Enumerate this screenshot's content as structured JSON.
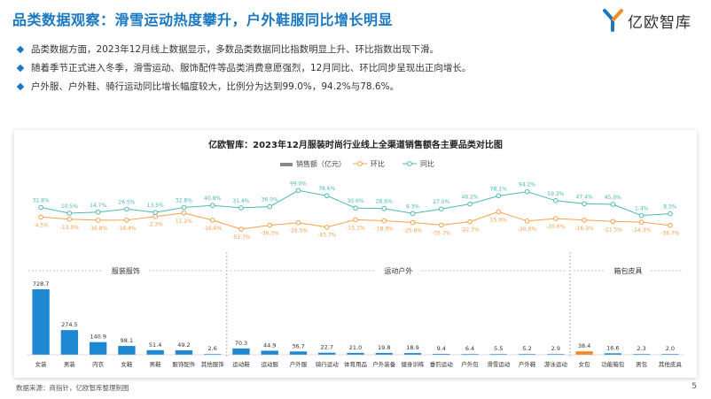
{
  "page": {
    "title": "品类数据观察：滑雪运动热度攀升，户外鞋服同比增长明显",
    "logo_text": "亿欧智库",
    "bullets": [
      "品类数据方面，2023年12月线上数据显示，多数品类数据同比指数明显上升、环比指数出现下滑。",
      "随着季节正式进入冬季，滑雪运动、服饰配件等品类消费意愿强烈，12月同比、环比同步呈现出正向增长。",
      "户外服、户外鞋、骑行运动同比增长幅度较大，比例分为达到99.0%，94.2%与78.6%。"
    ],
    "source": "数据来源：商指针，亿欧智库整理制图",
    "page_number": "5",
    "colors": {
      "accent": "#1a78c2",
      "bar": "#1f88d3",
      "bar_highlight": "#f28c28",
      "mom": "#f5a04a",
      "yoy": "#4bb8b3"
    }
  },
  "chart_data": {
    "type": "bar",
    "title": "亿欧智库：2023年12月服装时尚行业线上全渠道销售额各主要品类对比图",
    "legend": [
      "销售额（亿元）",
      "环比",
      "同比"
    ],
    "legend_position": "top",
    "categories": [
      "女装",
      "男装",
      "内衣",
      "女鞋",
      "男鞋",
      "服饰配件",
      "其他服饰",
      "运动鞋",
      "运动服",
      "户外服",
      "骑行运动",
      "体育用品",
      "户外装备",
      "健身训练",
      "垂钓运动",
      "户外包",
      "滑雪运动",
      "户外鞋",
      "游泳运动",
      "女包",
      "功能箱包",
      "男包",
      "其他皮具"
    ],
    "groups": [
      {
        "label": "服装服饰",
        "start": 0,
        "end": 6
      },
      {
        "label": "运动户外",
        "start": 7,
        "end": 18
      },
      {
        "label": "箱包皮具",
        "start": 19,
        "end": 22
      }
    ],
    "series": [
      {
        "name": "销售额（亿元）",
        "type": "bar",
        "values": [
          728.7,
          274.5,
          140.9,
          98.1,
          51.4,
          49.2,
          2.6,
          70.3,
          44.9,
          36.7,
          22.7,
          21.0,
          19.8,
          18.9,
          9.4,
          6.4,
          5.5,
          5.2,
          2.9,
          38.4,
          16.6,
          2.3,
          2.0
        ],
        "labels": [
          "728.7",
          "274.5",
          "140.9",
          "98.1",
          "51.4",
          "49.2",
          "2.6",
          "70.3",
          "44.9",
          "36.7",
          "22.7",
          "21.0",
          "19.8",
          "18.9",
          "9.4",
          "6.4",
          "5.5",
          "5.2",
          "2.9",
          "38.4",
          "16.6",
          "2.3",
          "2.0"
        ]
      },
      {
        "name": "环比",
        "type": "line",
        "values": [
          -4.5,
          -13.0,
          -16.8,
          -16.4,
          -2.3,
          11.2,
          -16.6,
          -51.7,
          -36.3,
          -26.5,
          -43.7,
          -15.1,
          -18.9,
          -25.8,
          -35.7,
          -22.7,
          15.9,
          -20.0,
          -10.6,
          -16.3,
          -21.5,
          -24.3,
          -36.7
        ],
        "labels": [
          "-4.5%",
          "-13.0%",
          "-16.8%",
          "-16.4%",
          "-2.3%",
          "11.2%",
          "-16.6%",
          "-51.7%",
          "-36.3%",
          "-26.5%",
          "-43.7%",
          "-15.1%",
          "-18.9%",
          "-25.8%",
          "-35.7%",
          "-22.7%",
          "15.9%",
          "-20.0%",
          "-10.6%",
          "-16.3%",
          "-21.5%",
          "-24.3%",
          "-36.7%"
        ]
      },
      {
        "name": "同比",
        "type": "line",
        "values": [
          32.8,
          10.5,
          14.7,
          26.5,
          13.5,
          32.8,
          40.8,
          31.4,
          36.0,
          99.0,
          78.6,
          30.6,
          28.6,
          9.3,
          27.0,
          46.2,
          78.1,
          94.2,
          59.3,
          47.4,
          45.0,
          1.4,
          8.5
        ],
        "labels": [
          "32.8%",
          "10.5%",
          "14.7%",
          "26.5%",
          "13.5%",
          "32.8%",
          "40.8%",
          "31.4%",
          "36.0%",
          "99.0%",
          "78.6%",
          "30.6%",
          "28.6%",
          "9.3%",
          "27.0%",
          "46.2%",
          "78.1%",
          "94.2%",
          "59.3%",
          "47.4%",
          "45.0%",
          "1.4%",
          "8.5%"
        ]
      }
    ],
    "highlight_bar_index": 19
  }
}
